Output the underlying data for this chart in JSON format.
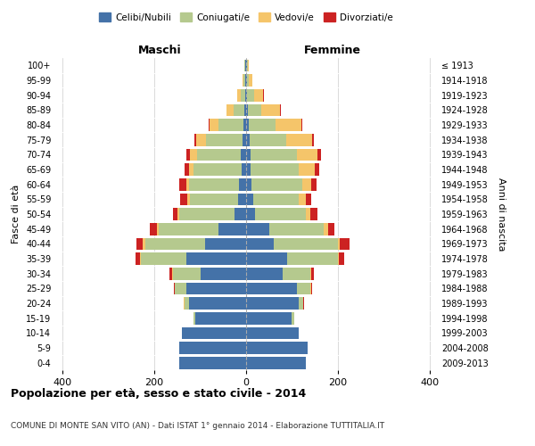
{
  "age_groups": [
    "0-4",
    "5-9",
    "10-14",
    "15-19",
    "20-24",
    "25-29",
    "30-34",
    "35-39",
    "40-44",
    "45-49",
    "50-54",
    "55-59",
    "60-64",
    "65-69",
    "70-74",
    "75-79",
    "80-84",
    "85-89",
    "90-94",
    "95-99",
    "100+"
  ],
  "birth_years": [
    "2009-2013",
    "2004-2008",
    "1999-2003",
    "1994-1998",
    "1989-1993",
    "1984-1988",
    "1979-1983",
    "1974-1978",
    "1969-1973",
    "1964-1968",
    "1959-1963",
    "1954-1958",
    "1949-1953",
    "1944-1948",
    "1939-1943",
    "1934-1938",
    "1929-1933",
    "1924-1928",
    "1919-1923",
    "1914-1918",
    "≤ 1913"
  ],
  "males": {
    "celibi": [
      145,
      145,
      140,
      110,
      125,
      130,
      100,
      130,
      90,
      60,
      25,
      18,
      15,
      10,
      12,
      8,
      5,
      3,
      2,
      1,
      1
    ],
    "coniugati": [
      0,
      0,
      0,
      5,
      10,
      25,
      60,
      100,
      130,
      130,
      120,
      105,
      110,
      105,
      95,
      80,
      55,
      25,
      10,
      4,
      2
    ],
    "vedovi": [
      0,
      0,
      0,
      0,
      1,
      1,
      2,
      2,
      5,
      5,
      5,
      5,
      5,
      10,
      15,
      20,
      20,
      15,
      8,
      3,
      1
    ],
    "divorziati": [
      0,
      0,
      0,
      0,
      1,
      2,
      5,
      10,
      15,
      15,
      10,
      15,
      15,
      10,
      8,
      5,
      2,
      0,
      0,
      0,
      0
    ]
  },
  "females": {
    "nubili": [
      130,
      135,
      115,
      100,
      115,
      110,
      80,
      90,
      60,
      50,
      20,
      15,
      12,
      10,
      10,
      8,
      5,
      4,
      2,
      1,
      1
    ],
    "coniugate": [
      0,
      0,
      0,
      5,
      10,
      30,
      60,
      110,
      140,
      120,
      110,
      100,
      110,
      105,
      100,
      80,
      60,
      30,
      15,
      5,
      2
    ],
    "vedove": [
      0,
      0,
      0,
      0,
      0,
      1,
      2,
      3,
      5,
      8,
      10,
      15,
      20,
      35,
      45,
      55,
      55,
      40,
      20,
      8,
      3
    ],
    "divorziate": [
      0,
      0,
      0,
      0,
      1,
      2,
      5,
      10,
      20,
      15,
      15,
      12,
      12,
      10,
      8,
      5,
      3,
      2,
      1,
      0,
      0
    ]
  },
  "colors": {
    "celibi": "#4472a8",
    "coniugati": "#b5c98e",
    "vedovi": "#f5c56a",
    "divorziati": "#cc2222"
  },
  "xlim": 420,
  "title": "Popolazione per età, sesso e stato civile - 2014",
  "subtitle": "COMUNE DI MONTE SAN VITO (AN) - Dati ISTAT 1° gennaio 2014 - Elaborazione TUTTITALIA.IT",
  "ylabel_left": "Fasce di età",
  "ylabel_right": "Anni di nascita",
  "xlabel_left": "Maschi",
  "xlabel_right": "Femmine"
}
